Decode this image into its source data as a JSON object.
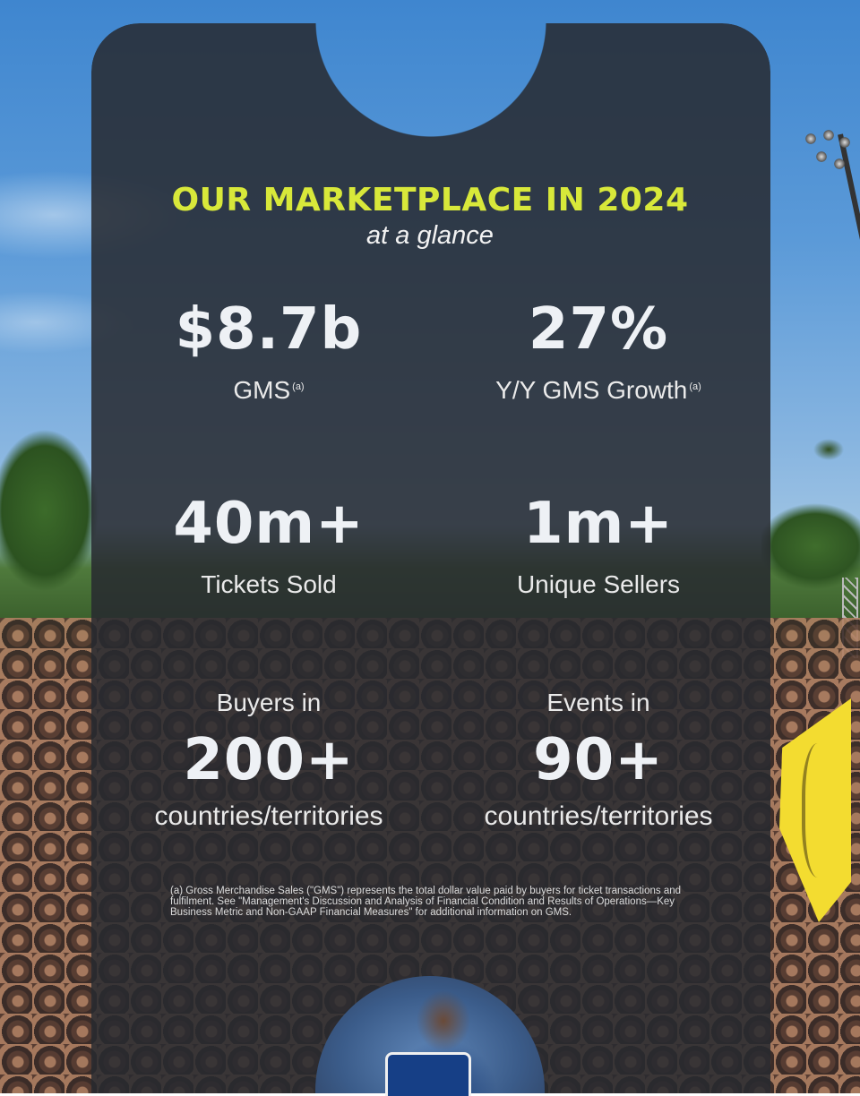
{
  "header": {
    "title": "OUR MARKETPLACE IN 2024",
    "subtitle": "at a glance"
  },
  "stats": {
    "gms": {
      "value": "$8.7b",
      "label": "GMS",
      "note": "(a)"
    },
    "growth": {
      "value": "27%",
      "label": "Y/Y GMS Growth",
      "note": "(a)"
    },
    "tickets": {
      "value": "40m+",
      "label": "Tickets Sold"
    },
    "sellers": {
      "value": "1m+",
      "label": "Unique Sellers"
    },
    "buyers": {
      "pre": "Buyers in",
      "value": "200+",
      "post": "countries/territories"
    },
    "events": {
      "pre": "Events in",
      "value": "90+",
      "post": "countries/territories"
    }
  },
  "footnote": "(a) Gross Merchandise Sales (\"GMS\") represents the total dollar value paid by buyers for ticket transactions and fulfilment. See \"Management's Discussion and Analysis of Financial Condition and Results of Operations—Key Business Metric and Non-GAAP Financial Measures\" for additional information on GMS.",
  "colors": {
    "accent": "#d8e83a",
    "panel": "#282a30",
    "text": "#ffffff"
  }
}
